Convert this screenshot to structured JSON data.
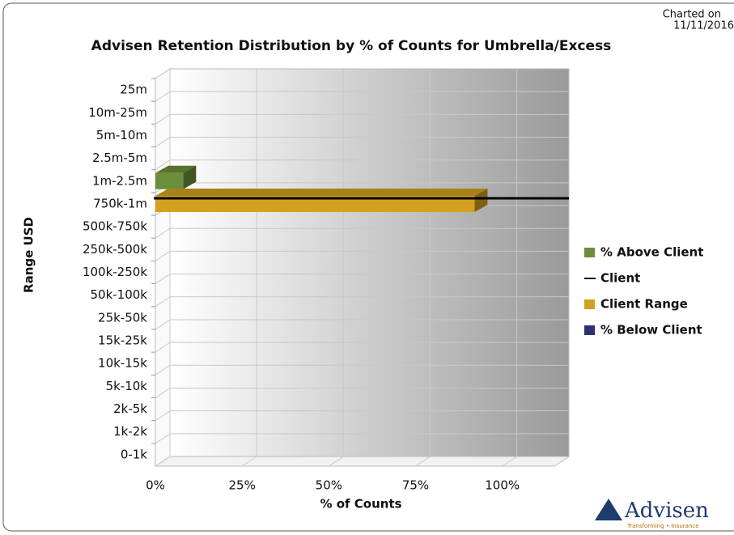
{
  "chart_data": {
    "type": "bar",
    "orientation": "horizontal",
    "title": "Advisen Retention Distribution by % of Counts for Umbrella/Excess",
    "charted_on": [
      "Charted on",
      "11/11/2016"
    ],
    "x_label": "% of Counts",
    "y_label": "Range USD",
    "categories": [
      "25m",
      "10m-25m",
      "5m-10m",
      "2.5m-5m",
      "1m-2.5m",
      "750k-1m",
      "500k-750k",
      "250k-500k",
      "100k-250k",
      "50k-100k",
      "25k-50k",
      "15k-25k",
      "10k-15k",
      "5k-10k",
      "2k-5k",
      "1k-2k",
      "0-1k"
    ],
    "series": [
      {
        "name": "% Above Client",
        "color": "#6b8e3a",
        "values": [
          null,
          null,
          null,
          null,
          8,
          null,
          null,
          null,
          null,
          null,
          null,
          null,
          null,
          null,
          null,
          null,
          null
        ]
      },
      {
        "name": "Client",
        "color": "#000000",
        "kind": "line",
        "category": "750k-1m"
      },
      {
        "name": "Client Range",
        "color": "#d4a020",
        "values": [
          null,
          null,
          null,
          null,
          null,
          92,
          null,
          null,
          null,
          null,
          null,
          null,
          null,
          null,
          null,
          null,
          null
        ]
      },
      {
        "name": "% Below Client",
        "color": "#2a3275",
        "values": [
          null,
          null,
          null,
          null,
          null,
          null,
          null,
          null,
          null,
          null,
          null,
          null,
          null,
          null,
          null,
          null,
          null
        ]
      }
    ],
    "xlim": [
      0,
      115
    ],
    "xticks": [
      {
        "value": 0,
        "label": "0%"
      },
      {
        "value": 25,
        "label": "25%"
      },
      {
        "value": 50,
        "label": "50%"
      },
      {
        "value": 75,
        "label": "75%"
      },
      {
        "value": 100,
        "label": "100%"
      }
    ],
    "grid": true,
    "legend": "right",
    "logo": {
      "name": "Advisen",
      "tagline": "Transforming • Insurance"
    }
  }
}
